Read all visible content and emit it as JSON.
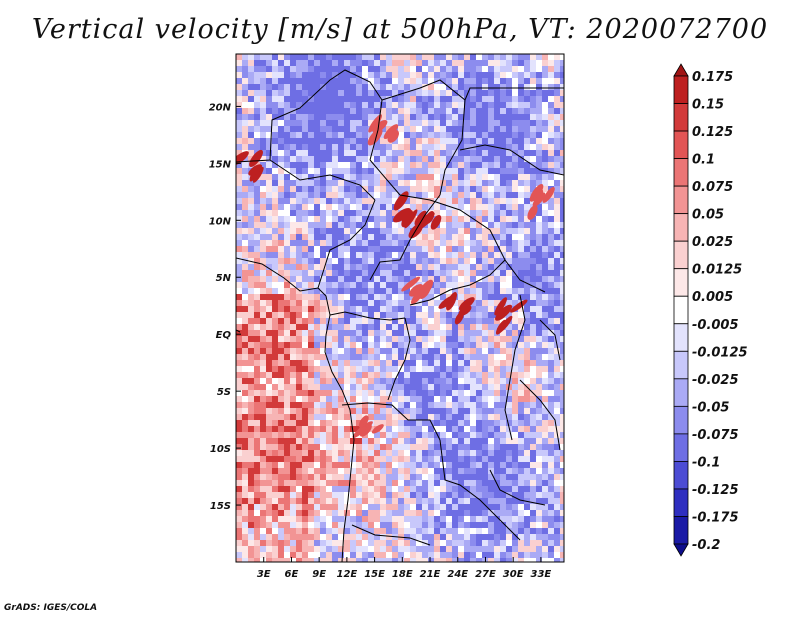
{
  "title": "Vertical velocity [m/s] at 500hPa, VT: 2020072700",
  "credit": "GrADS: IGES/COLA",
  "map": {
    "lon_range": [
      0,
      35.5
    ],
    "lat_range": [
      -20,
      24.6
    ],
    "lon_ticks": [
      "3E",
      "6E",
      "9E",
      "12E",
      "15E",
      "18E",
      "21E",
      "24E",
      "27E",
      "30E",
      "33E"
    ],
    "lat_ticks": [
      "20N",
      "15N",
      "10N",
      "5N",
      "EQ",
      "5S",
      "10S",
      "15S"
    ],
    "lon_tick_values": [
      3,
      6,
      9,
      12,
      15,
      18,
      21,
      24,
      27,
      30,
      33
    ],
    "lat_tick_values": [
      20,
      15,
      10,
      5,
      0,
      -5,
      -10,
      -15
    ]
  },
  "colorbar": {
    "levels": [
      "0.175",
      "0.15",
      "0.125",
      "0.1",
      "0.075",
      "0.05",
      "0.025",
      "0.0125",
      "0.005",
      "-0.005",
      "-0.0125",
      "-0.025",
      "-0.05",
      "-0.075",
      "-0.1",
      "-0.125",
      "-0.175",
      "-0.2"
    ],
    "colors": [
      "#a01414",
      "#bd2020",
      "#d23a3a",
      "#e25555",
      "#eb7575",
      "#f29494",
      "#f7b4b4",
      "#fad0d0",
      "#fde8e8",
      "#ffffff",
      "#e3e3fd",
      "#c8c8fb",
      "#aaaaf5",
      "#8c8cee",
      "#6e6ee4",
      "#4c4cd4",
      "#2e2ec0",
      "#1a1aa6",
      "#0d0d8c"
    ]
  },
  "field": {
    "hotspots": [
      {
        "lon": 1.5,
        "lat": 14.5,
        "strength": 0.95
      },
      {
        "lon": 18.8,
        "lat": 10.8,
        "strength": 1.0
      },
      {
        "lon": 20.5,
        "lat": 10.0,
        "strength": 0.9
      },
      {
        "lon": 24.0,
        "lat": 2.2,
        "strength": 0.85
      },
      {
        "lon": 29.8,
        "lat": 1.5,
        "strength": 0.95
      },
      {
        "lon": 33.0,
        "lat": 11.5,
        "strength": 0.7
      },
      {
        "lon": 19.5,
        "lat": 3.5,
        "strength": 0.75
      },
      {
        "lon": 16.0,
        "lat": 18.0,
        "strength": 0.4
      },
      {
        "lon": 14.5,
        "lat": -8.5,
        "strength": 0.35
      }
    ],
    "cold_regions": [
      {
        "lon": 27,
        "lat": 18,
        "strength": 0.8
      },
      {
        "lon": 9,
        "lat": 19,
        "strength": 0.6
      },
      {
        "lon": 14,
        "lat": 6,
        "strength": 0.55
      },
      {
        "lon": 27,
        "lat": -13,
        "strength": 0.7
      },
      {
        "lon": 22,
        "lat": -4,
        "strength": 0.45
      },
      {
        "lon": 33,
        "lat": 5,
        "strength": 0.6
      },
      {
        "lon": 9,
        "lat": 23,
        "strength": 0.5
      }
    ],
    "warm_regions": [
      {
        "lon": 2,
        "lat": -10,
        "strength": 0.45
      },
      {
        "lon": 12,
        "lat": -9,
        "strength": 0.5
      },
      {
        "lon": 4,
        "lat": 2,
        "strength": 0.4
      },
      {
        "lon": 22,
        "lat": 13,
        "strength": 0.3
      },
      {
        "lon": 28,
        "lat": -3,
        "strength": 0.3
      }
    ]
  }
}
